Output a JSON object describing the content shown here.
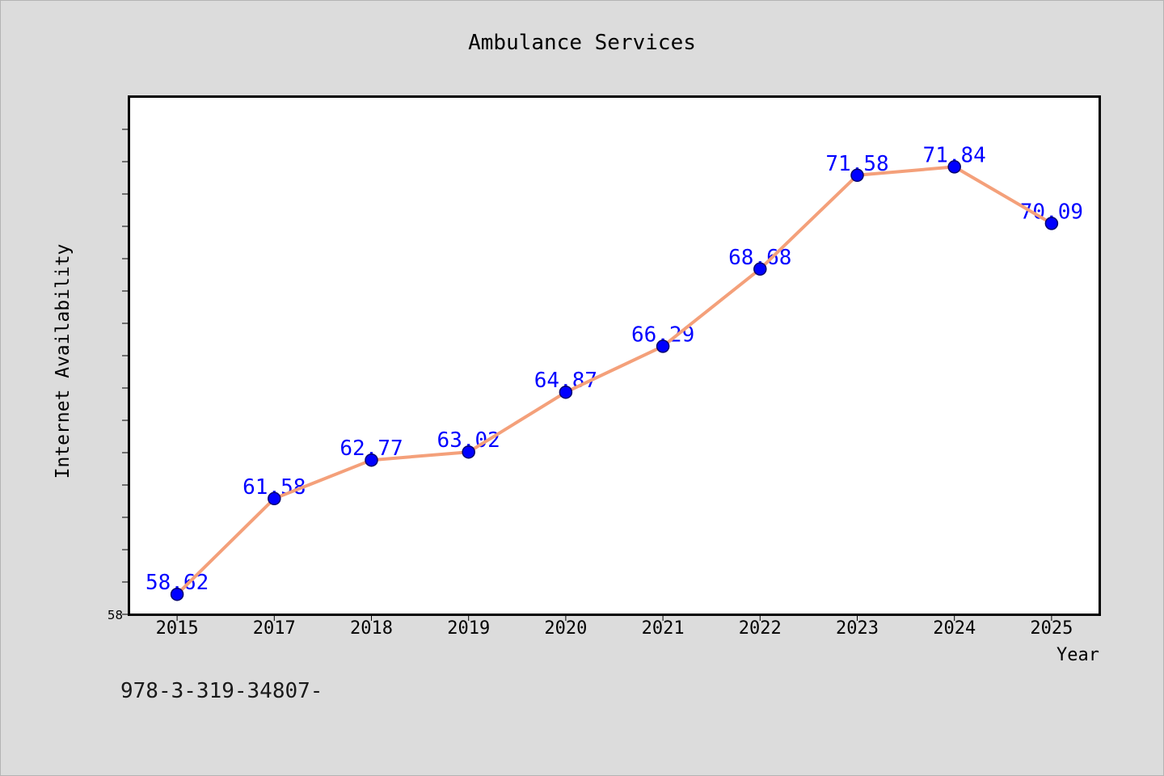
{
  "colors": {
    "page_background": "#dcdcdc",
    "plot_background": "#ffffff",
    "axis": "#000000",
    "line": "#f4a07a",
    "marker_fill": "#0000ff",
    "marker_edge": "#00006e",
    "data_label": "#0000ff"
  },
  "chart_data": {
    "type": "line",
    "title": "Ambulance Services",
    "xlabel": "Year",
    "ylabel": "Internet Availability",
    "categories": [
      "2015",
      "2017",
      "2018",
      "2019",
      "2020",
      "2021",
      "2022",
      "2023",
      "2024",
      "2025"
    ],
    "series": [
      {
        "values": [
          58.62,
          61.58,
          62.77,
          63.02,
          64.87,
          66.29,
          68.68,
          71.58,
          71.84,
          70.09
        ]
      }
    ],
    "ylim": [
      58,
      74
    ],
    "ytick_step": 1,
    "ytick_labels": [
      {
        "value": 58,
        "label": "58"
      }
    ],
    "data_labels": true,
    "grid": false,
    "legend": false,
    "annotations": [
      "978-3-319-34807-"
    ]
  }
}
